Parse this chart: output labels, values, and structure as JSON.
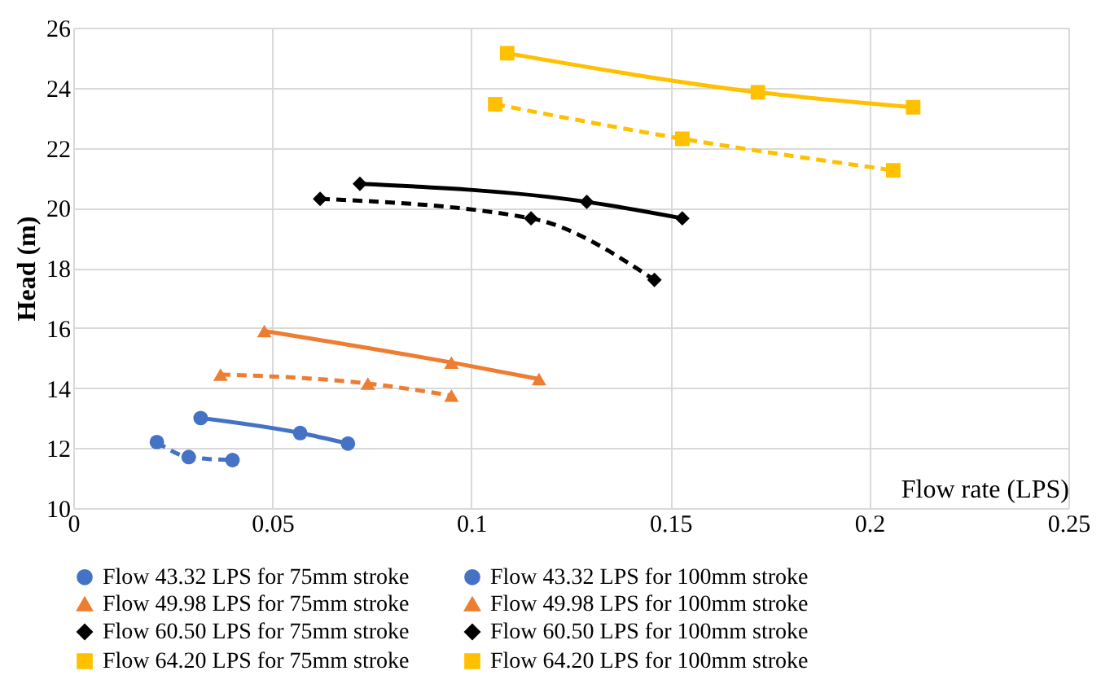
{
  "chart_data": {
    "type": "line",
    "xlabel": "Flow rate (LPS)",
    "ylabel": "Head (m)",
    "xlim": [
      0,
      0.25
    ],
    "xticks": [
      0,
      0.05,
      0.1,
      0.15,
      0.2,
      0.25
    ],
    "ylim": [
      10,
      26
    ],
    "yticks": [
      10,
      12,
      14,
      16,
      18,
      20,
      22,
      24,
      26
    ],
    "grid": true,
    "legend": "bottom",
    "series": [
      {
        "name": "Flow 43.32 LPS for 75mm stroke",
        "color": "#4472c4",
        "marker": "circle",
        "line_style": "solid",
        "x": [
          0.032,
          0.057,
          0.069
        ],
        "values": [
          13.0,
          12.5,
          12.15
        ]
      },
      {
        "name": "Flow 43.32 LPS for 100mm stroke",
        "color": "#4472c4",
        "marker": "circle",
        "line_style": "dashed",
        "x": [
          0.021,
          0.029,
          0.04
        ],
        "values": [
          12.2,
          11.7,
          11.6
        ]
      },
      {
        "name": "Flow 49.98 LPS for 75mm stroke",
        "color": "#ed7d31",
        "marker": "triangle",
        "line_style": "solid",
        "x": [
          0.048,
          0.095,
          0.117
        ],
        "values": [
          15.9,
          14.85,
          14.3
        ]
      },
      {
        "name": "Flow 49.98 LPS for 100mm stroke",
        "color": "#ed7d31",
        "marker": "triangle",
        "line_style": "dashed",
        "x": [
          0.037,
          0.074,
          0.095
        ],
        "values": [
          14.45,
          14.15,
          13.75
        ]
      },
      {
        "name": "Flow 60.50 LPS for 75mm stroke",
        "color": "#000000",
        "marker": "diamond",
        "line_style": "solid",
        "x": [
          0.072,
          0.129,
          0.153
        ],
        "values": [
          20.8,
          20.2,
          19.65
        ]
      },
      {
        "name": "Flow 60.50 LPS for 100mm stroke",
        "color": "#000000",
        "marker": "diamond",
        "line_style": "dashed",
        "x": [
          0.062,
          0.115,
          0.146
        ],
        "values": [
          20.3,
          19.65,
          17.6
        ]
      },
      {
        "name": "Flow 64.20 LPS for 75mm stroke",
        "color": "#ffc000",
        "marker": "square",
        "line_style": "solid",
        "x": [
          0.109,
          0.172,
          0.211
        ],
        "values": [
          25.15,
          23.85,
          23.35
        ]
      },
      {
        "name": "Flow 64.20 LPS for 100mm stroke",
        "color": "#ffc000",
        "marker": "square",
        "line_style": "dashed",
        "x": [
          0.106,
          0.153,
          0.206
        ],
        "values": [
          23.45,
          22.3,
          21.25
        ]
      }
    ]
  }
}
